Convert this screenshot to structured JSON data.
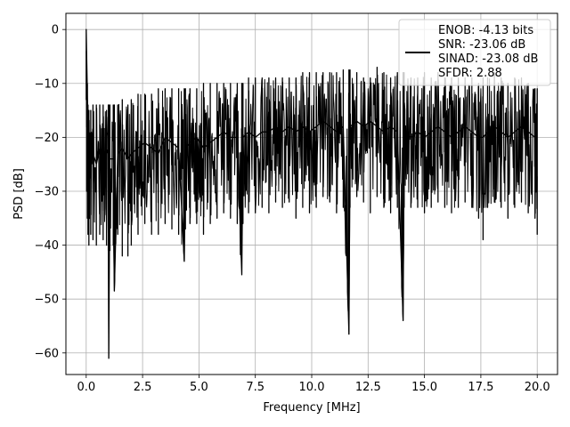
{
  "chart_data": {
    "type": "line",
    "title": "",
    "xlabel": "Frequency [MHz]",
    "ylabel": "PSD [dB]",
    "xlim": [
      -0.9,
      20.9
    ],
    "ylim": [
      -64,
      3
    ],
    "xticks": [
      0.0,
      2.5,
      5.0,
      7.5,
      10.0,
      12.5,
      15.0,
      17.5,
      20.0
    ],
    "xtick_labels": [
      "0.0",
      "2.5",
      "5.0",
      "7.5",
      "10.0",
      "12.5",
      "15.0",
      "17.5",
      "20.0"
    ],
    "yticks": [
      0,
      -10,
      -20,
      -30,
      -40,
      -50,
      -60
    ],
    "ytick_labels": [
      "0",
      "−10",
      "−20",
      "−30",
      "−40",
      "−50",
      "−60"
    ],
    "grid": true,
    "legend_position": "top-right",
    "series": [
      {
        "name": "ENOB: -4.13 bits\nSNR: -23.06 dB\nSINAD: -23.08 dB\nSFDR: 2.88",
        "color": "#000000",
        "x": [
          0.0,
          0.02,
          0.05,
          0.08,
          0.12,
          0.2,
          0.3,
          0.45,
          0.6,
          0.75,
          0.9,
          0.98,
          1.0,
          1.05,
          1.2,
          1.25,
          1.4,
          1.6,
          1.85,
          2.0,
          2.3,
          2.6,
          2.9,
          3.2,
          3.5,
          3.8,
          4.1,
          4.35,
          4.4,
          4.6,
          4.9,
          5.2,
          5.5,
          5.8,
          6.1,
          6.4,
          6.7,
          6.9,
          6.95,
          7.2,
          7.5,
          7.8,
          8.1,
          8.4,
          8.7,
          9.0,
          9.3,
          9.6,
          9.9,
          10.2,
          10.5,
          10.8,
          11.1,
          11.4,
          11.65,
          11.7,
          12.0,
          12.3,
          12.6,
          12.9,
          13.2,
          13.5,
          13.8,
          14.05,
          14.1,
          14.4,
          14.7,
          15.0,
          15.3,
          15.6,
          15.9,
          16.2,
          16.5,
          16.8,
          17.1,
          17.4,
          17.6,
          17.8,
          18.1,
          18.4,
          18.7,
          19.0,
          19.3,
          19.6,
          19.9,
          20.0
        ],
        "y_center": [
          0.0,
          -5,
          -12,
          -20,
          -24,
          -22,
          -23,
          -25,
          -22,
          -24,
          -23,
          -22,
          -61,
          -24,
          -24,
          -48.5,
          -23,
          -22,
          -24,
          -23,
          -22,
          -21,
          -22,
          -23,
          -20,
          -21,
          -22,
          -43,
          -22,
          -21,
          -20,
          -22,
          -21,
          -20,
          -19,
          -20,
          -20,
          -45.5,
          -20,
          -19,
          -20,
          -19,
          -19,
          -18,
          -19,
          -18,
          -19,
          -18,
          -19,
          -18,
          -17,
          -18,
          -19,
          -18,
          -56.5,
          -18,
          -17,
          -18,
          -17,
          -18,
          -19,
          -18,
          -19,
          -54,
          -19,
          -20,
          -19,
          -20,
          -19,
          -18,
          -19,
          -20,
          -19,
          -18,
          -19,
          -20,
          -20,
          -19,
          -18,
          -19,
          -20,
          -19,
          -18,
          -19,
          -20,
          -21
        ],
        "spread_top": [
          0.0,
          -5,
          -10,
          -14,
          -15,
          -15,
          -14,
          -14,
          -14,
          -14,
          -15,
          -14,
          -14,
          -14,
          -14,
          -14,
          -14,
          -13,
          -14,
          -13,
          -12,
          -12,
          -12,
          -11,
          -11,
          -11,
          -11,
          -11,
          -11,
          -11,
          -11,
          -10,
          -10,
          -10,
          -10,
          -10,
          -10,
          -10,
          -10,
          -9,
          -9,
          -9,
          -9,
          -9,
          -9,
          -9,
          -9,
          -8,
          -8,
          -8,
          -8,
          -8,
          -8,
          -7.5,
          -7.5,
          -7.5,
          -8,
          -9,
          -9,
          -7,
          -8,
          -9,
          -8,
          -8,
          -8,
          -9,
          -9,
          -8,
          -9,
          -8,
          -9,
          -9,
          -9,
          -9,
          -9,
          -10,
          -9,
          -9,
          -8,
          -9,
          -10,
          -9,
          -9,
          -10,
          -11,
          -11
        ],
        "spread_bottom": [
          -13,
          -30,
          -35,
          -38,
          -40,
          -38,
          -39,
          -40,
          -38,
          -39,
          -40,
          -41,
          -61,
          -41,
          -40,
          -48.5,
          -38,
          -42,
          -42,
          -40,
          -38,
          -36,
          -38,
          -38,
          -36,
          -37,
          -38,
          -43,
          -37,
          -36,
          -36,
          -38,
          -36,
          -35,
          -34,
          -35,
          -36,
          -45.5,
          -36,
          -34,
          -34,
          -33,
          -34,
          -32,
          -33,
          -32,
          -35,
          -33,
          -34,
          -33,
          -31,
          -32,
          -34,
          -33,
          -56.5,
          -33,
          -31,
          -32,
          -34,
          -31,
          -33,
          -34,
          -33,
          -54,
          -33,
          -33,
          -33,
          -34,
          -33,
          -32,
          -33,
          -34,
          -33,
          -32,
          -33,
          -35,
          -39,
          -33,
          -32,
          -33,
          -35,
          -33,
          -32,
          -34,
          -35,
          -38
        ]
      }
    ]
  }
}
